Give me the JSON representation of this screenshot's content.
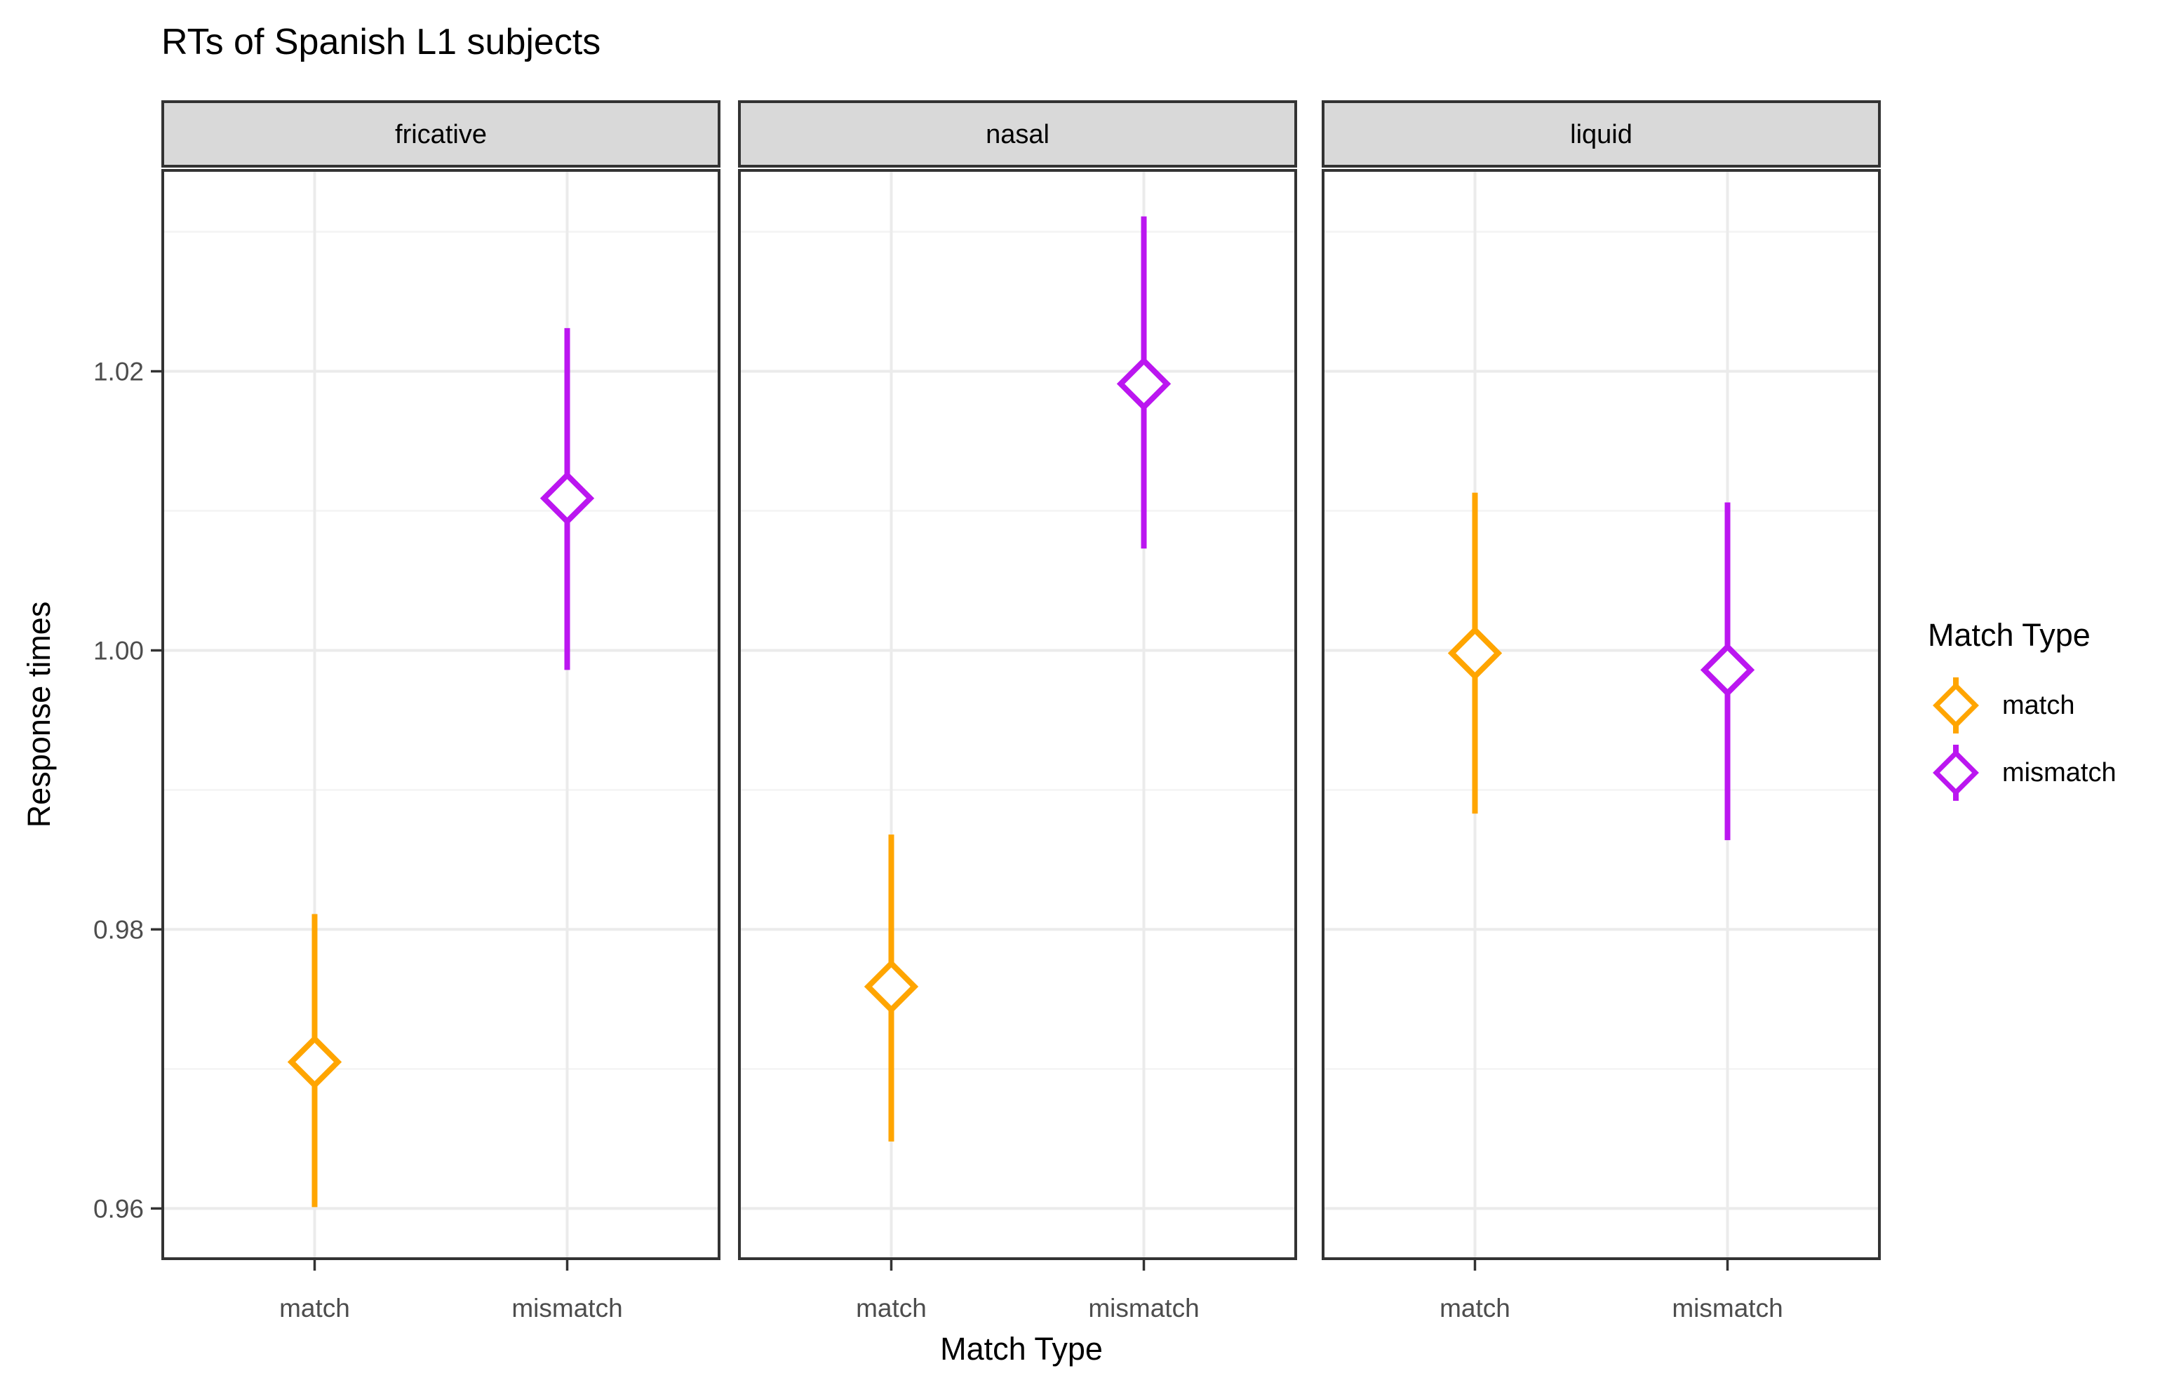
{
  "chart_data": {
    "type": "pointrange",
    "title": "RTs of Spanish L1 subjects",
    "xlabel": "Match Type",
    "ylabel": "Response times",
    "categories": [
      "match",
      "mismatch"
    ],
    "facets": [
      {
        "label": "fricative",
        "points": [
          {
            "group": "match",
            "mean": 0.9705,
            "lower": 0.9601,
            "upper": 0.9811
          },
          {
            "group": "mismatch",
            "mean": 1.0109,
            "lower": 0.9986,
            "upper": 1.0231
          }
        ]
      },
      {
        "label": "nasal",
        "points": [
          {
            "group": "match",
            "mean": 0.9759,
            "lower": 0.9648,
            "upper": 0.9868
          },
          {
            "group": "mismatch",
            "mean": 1.0191,
            "lower": 1.0073,
            "upper": 1.0311
          }
        ]
      },
      {
        "label": "liquid",
        "points": [
          {
            "group": "match",
            "mean": 0.9998,
            "lower": 0.9883,
            "upper": 1.0113
          },
          {
            "group": "mismatch",
            "mean": 0.9986,
            "lower": 0.9864,
            "upper": 1.0106
          }
        ]
      }
    ],
    "y_ticks": [
      0.96,
      0.98,
      1.0,
      1.02
    ],
    "y_tick_labels": [
      "0.96",
      "0.98",
      "1.00",
      "1.02"
    ],
    "y_minor_ticks": [
      0.97,
      0.99,
      1.01,
      1.03
    ],
    "ylim": [
      0.9564,
      1.0344
    ],
    "grid": true,
    "legend": {
      "title": "Match Type",
      "position": "right",
      "items": [
        {
          "label": "match",
          "color": "#FFA500"
        },
        {
          "label": "mismatch",
          "color": "#BB16F0"
        }
      ]
    },
    "colors": {
      "match": "#FFA500",
      "mismatch": "#BB16F0"
    },
    "theme": {
      "strip_fill": "#D9D9D9",
      "strip_border": "#333333",
      "panel_border": "#333333",
      "grid_major": "#EBEBEB",
      "grid_minor": "#F4F4F4",
      "tick_color": "#333333",
      "axis_text_color": "#4D4D4D",
      "text_color": "#000000"
    }
  }
}
